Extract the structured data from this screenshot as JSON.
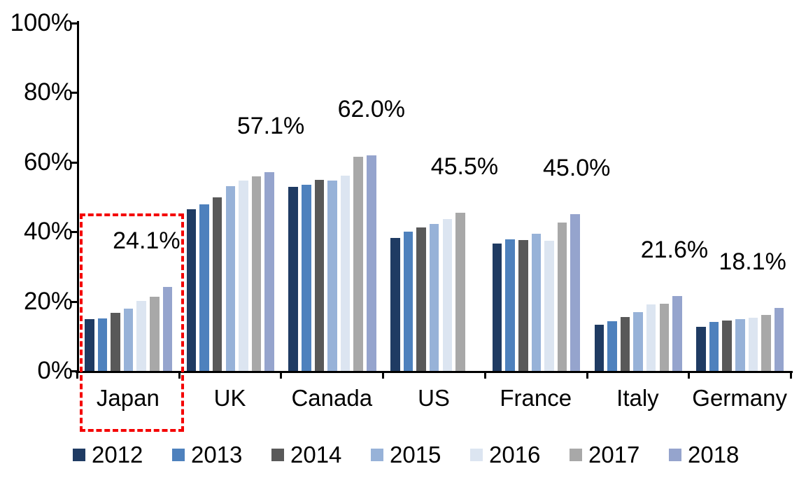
{
  "chart_data": {
    "type": "bar",
    "title": "",
    "xlabel": "",
    "ylabel": "",
    "categories": [
      "Japan",
      "UK",
      "Canada",
      "US",
      "France",
      "Italy",
      "Germany"
    ],
    "series": [
      {
        "name": "2012",
        "color": "#1f3b63",
        "values": [
          14.8,
          46.4,
          53.0,
          38.2,
          36.6,
          13.2,
          12.6
        ]
      },
      {
        "name": "2013",
        "color": "#4e81bd",
        "values": [
          15.0,
          47.9,
          53.5,
          40.0,
          37.8,
          14.2,
          14.1
        ]
      },
      {
        "name": "2014",
        "color": "#595959",
        "values": [
          16.7,
          50.0,
          55.0,
          41.2,
          37.7,
          15.5,
          14.4
        ]
      },
      {
        "name": "2015",
        "color": "#97b2d8",
        "values": [
          18.0,
          53.1,
          54.7,
          42.2,
          39.4,
          16.9,
          14.8
        ]
      },
      {
        "name": "2016",
        "color": "#dce5f1",
        "values": [
          20.1,
          54.8,
          56.2,
          43.6,
          37.5,
          19.1,
          15.3
        ]
      },
      {
        "name": "2017",
        "color": "#a8a8a8",
        "values": [
          21.3,
          56.0,
          61.6,
          45.5,
          42.6,
          19.3,
          16.0
        ]
      },
      {
        "name": "2018",
        "color": "#95a4cd",
        "values": [
          24.1,
          57.1,
          62.0,
          null,
          45.0,
          21.6,
          18.1
        ]
      }
    ],
    "data_labels": [
      "24.1%",
      "57.1%",
      "62.0%",
      "45.5%",
      "45.0%",
      "21.6%",
      "18.1%"
    ],
    "y_axis": {
      "min": 0,
      "max": 100,
      "tick_step": 20,
      "tick_labels": [
        "0%",
        "20%",
        "40%",
        "60%",
        "80%",
        "100%"
      ],
      "format": "percent"
    },
    "legend": {
      "position": "bottom",
      "entries": [
        "2012",
        "2013",
        "2014",
        "2015",
        "2016",
        "2017",
        "2018"
      ]
    },
    "grid": false,
    "annotations": {
      "highlight": {
        "category": "Japan",
        "style": "red-dashed-rectangle",
        "color": "#f40000"
      }
    },
    "axis_color": "#000000",
    "background_color": "#ffffff"
  }
}
